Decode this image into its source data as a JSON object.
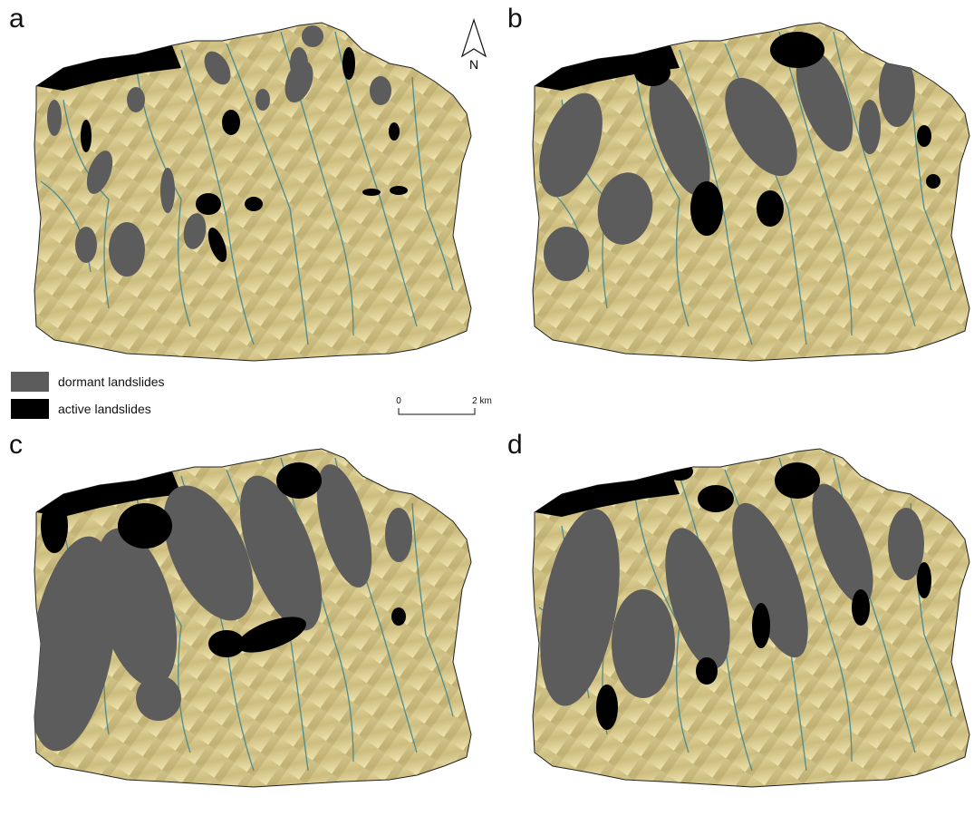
{
  "panels": [
    {
      "label": "a"
    },
    {
      "label": "b"
    },
    {
      "label": "c"
    },
    {
      "label": "d"
    }
  ],
  "north_arrow": "N",
  "legend": [
    {
      "label": "dormant landslides",
      "color": "#5c5c5c"
    },
    {
      "label": "active landslides",
      "color": "#000000"
    }
  ],
  "scale_bar": {
    "labels": [
      "0",
      "2 km"
    ]
  }
}
